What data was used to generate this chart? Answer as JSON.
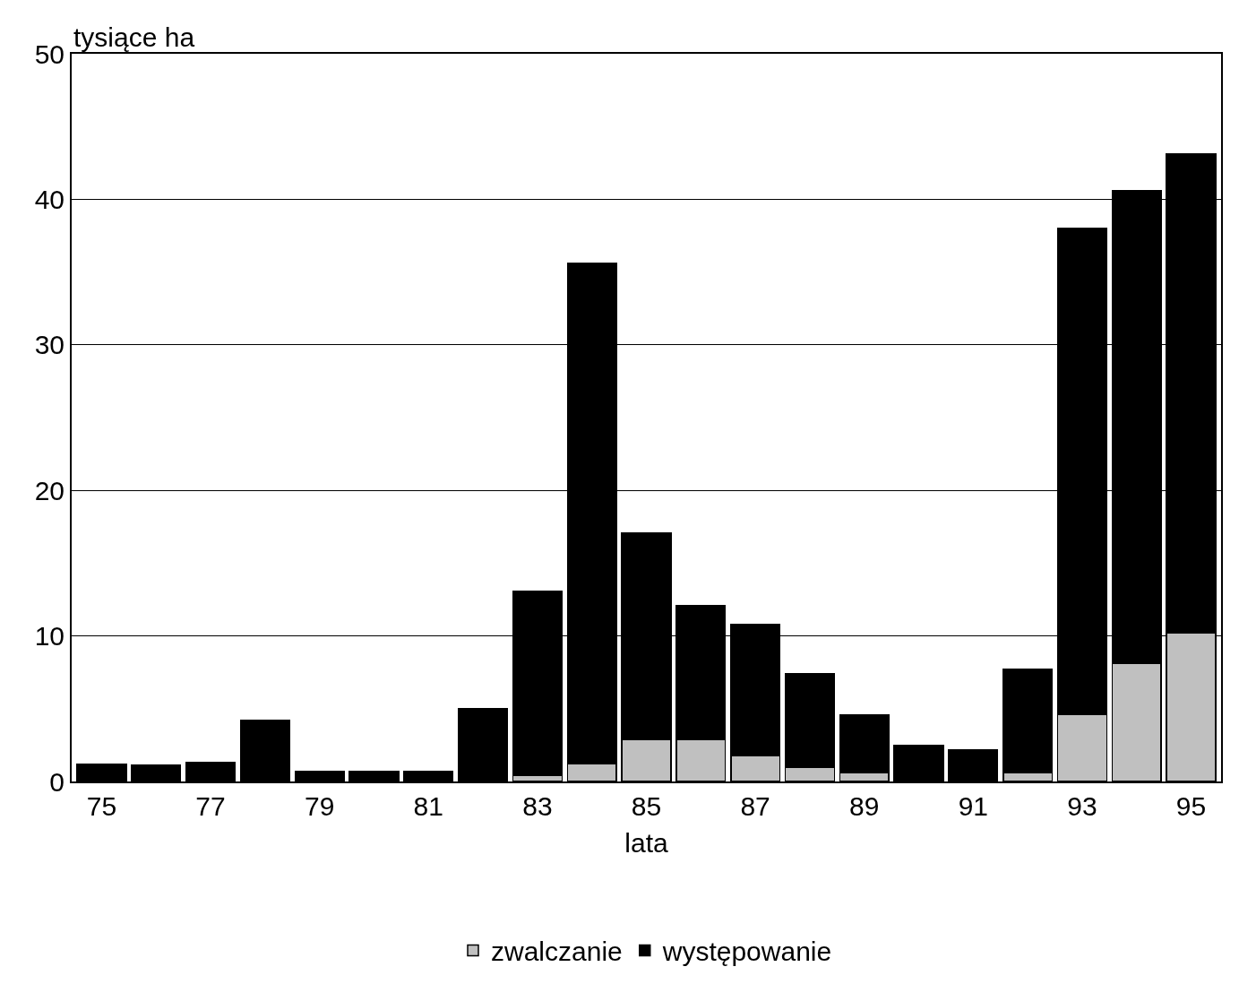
{
  "chart_data": {
    "type": "bar",
    "stacked": true,
    "xlabel": "lata",
    "ylabel": "tysiące ha",
    "categories": [
      "75",
      null,
      "77",
      null,
      "79",
      null,
      "81",
      null,
      "83",
      null,
      "85",
      null,
      "87",
      null,
      "89",
      null,
      "91",
      null,
      "93",
      null,
      "95"
    ],
    "series": [
      {
        "name": "zwalczanie",
        "color": "#c0c0c0",
        "values": [
          null,
          null,
          null,
          null,
          null,
          null,
          null,
          null,
          0.4,
          1.2,
          2.9,
          2.9,
          1.8,
          1.0,
          0.6,
          null,
          null,
          0.6,
          4.6,
          8.1,
          10.2
        ]
      },
      {
        "name": "występowanie",
        "color": "#000000",
        "values": [
          1.2,
          1.1,
          1.3,
          4.2,
          0.7,
          0.7,
          0.7,
          5.0,
          12.7,
          34.4,
          14.2,
          9.2,
          9.0,
          6.4,
          4.0,
          2.5,
          2.2,
          7.1,
          33.4,
          32.5,
          32.9
        ]
      }
    ],
    "ylim": [
      0,
      50
    ],
    "yticks": [
      0,
      10,
      20,
      30,
      40,
      50
    ],
    "grid": "y",
    "legend": "bottom"
  }
}
